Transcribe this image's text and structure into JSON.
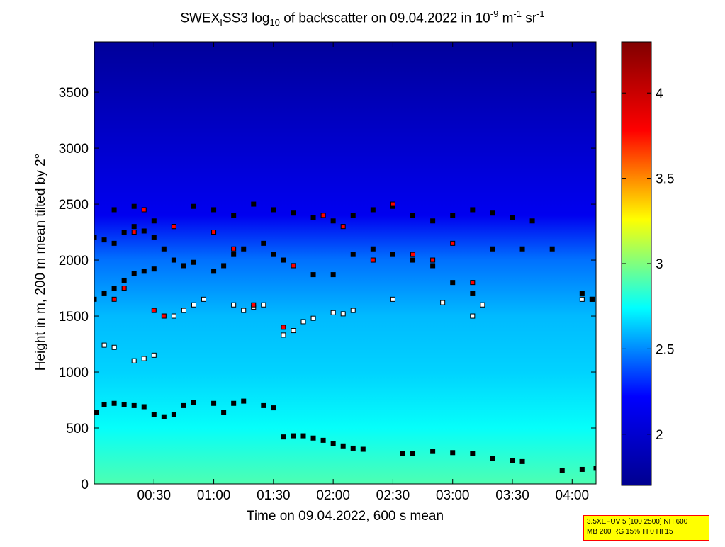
{
  "chart_data": {
    "type": "heatmap",
    "title": "SWEX_I SS3 log10 of backscatter on 09.04.2022 in 10^-9 m^-1 sr^-1",
    "title_parts": {
      "a": "SWEX",
      "a_sub": "I",
      "b": "SS3 log",
      "b_sub": "10",
      "c": " of backscatter on 09.04.2022 in 10",
      "c_sup": "-9",
      "d": " m",
      "d_sup": "-1",
      "e": " sr",
      "e_sup": "-1"
    },
    "xlabel": "Time on 09.04.2022, 600 s mean",
    "ylabel": "Height in m, 200 m mean tilted by 2°",
    "x_range_minutes": [
      0,
      252
    ],
    "y_range_m": [
      0,
      3950
    ],
    "x_ticks": [
      {
        "minutes": 30,
        "label": "00:30"
      },
      {
        "minutes": 60,
        "label": "01:00"
      },
      {
        "minutes": 90,
        "label": "01:30"
      },
      {
        "minutes": 120,
        "label": "02:00"
      },
      {
        "minutes": 150,
        "label": "02:30"
      },
      {
        "minutes": 180,
        "label": "03:00"
      },
      {
        "minutes": 210,
        "label": "03:30"
      },
      {
        "minutes": 240,
        "label": "04:00"
      }
    ],
    "y_ticks": [
      {
        "value": 0,
        "label": "0"
      },
      {
        "value": 500,
        "label": "500"
      },
      {
        "value": 1000,
        "label": "1000"
      },
      {
        "value": 1500,
        "label": "1500"
      },
      {
        "value": 2000,
        "label": "2000"
      },
      {
        "value": 2500,
        "label": "2500"
      },
      {
        "value": 3000,
        "label": "3000"
      },
      {
        "value": 3500,
        "label": "3500"
      }
    ],
    "colorbar": {
      "range": [
        1.7,
        4.3
      ],
      "ticks": [
        {
          "value": 2,
          "label": "2"
        },
        {
          "value": 2.5,
          "label": "2.5"
        },
        {
          "value": 3,
          "label": "3"
        },
        {
          "value": 3.5,
          "label": "3.5"
        },
        {
          "value": 4,
          "label": "4"
        }
      ],
      "colormap": "jet",
      "colors": [
        "#00008f",
        "#0000ff",
        "#00ffff",
        "#ffff00",
        "#ff0000",
        "#800000"
      ]
    },
    "field_levels": {
      "top_region_3950m": 1.75,
      "cloud_layer_2400m": 2.15,
      "layer_2000m": 2.45,
      "layer_1500m": 2.6,
      "layer_1000m": 2.65,
      "layer_500m": 2.75,
      "surface_0m": 2.9
    },
    "series": [
      {
        "name": "marker_layer_near_surface",
        "points": [
          [
            1,
            640
          ],
          [
            5,
            710
          ],
          [
            10,
            720
          ],
          [
            15,
            710
          ],
          [
            20,
            700
          ],
          [
            25,
            690
          ],
          [
            30,
            620
          ],
          [
            35,
            600
          ],
          [
            40,
            620
          ],
          [
            45,
            700
          ],
          [
            50,
            730
          ],
          [
            60,
            720
          ],
          [
            65,
            640
          ],
          [
            70,
            720
          ],
          [
            75,
            740
          ],
          [
            85,
            700
          ],
          [
            90,
            680
          ],
          [
            95,
            420
          ],
          [
            100,
            430
          ],
          [
            105,
            430
          ],
          [
            110,
            410
          ],
          [
            115,
            390
          ],
          [
            120,
            360
          ],
          [
            125,
            340
          ],
          [
            130,
            320
          ],
          [
            135,
            310
          ],
          [
            155,
            270
          ],
          [
            160,
            270
          ],
          [
            170,
            290
          ],
          [
            180,
            280
          ],
          [
            190,
            270
          ],
          [
            200,
            230
          ],
          [
            210,
            210
          ],
          [
            215,
            200
          ],
          [
            235,
            120
          ],
          [
            245,
            130
          ],
          [
            252,
            140
          ]
        ]
      },
      {
        "name": "marker_layer_mid",
        "points": [
          [
            5,
            1240
          ],
          [
            10,
            1220
          ],
          [
            20,
            1100
          ],
          [
            25,
            1120
          ],
          [
            30,
            1150
          ],
          [
            40,
            1500
          ],
          [
            45,
            1550
          ],
          [
            50,
            1600
          ],
          [
            55,
            1650
          ],
          [
            70,
            1600
          ],
          [
            75,
            1550
          ],
          [
            80,
            1580
          ],
          [
            85,
            1600
          ],
          [
            95,
            1330
          ],
          [
            100,
            1370
          ],
          [
            105,
            1450
          ],
          [
            110,
            1480
          ],
          [
            120,
            1530
          ],
          [
            125,
            1520
          ],
          [
            130,
            1550
          ],
          [
            150,
            1650
          ],
          [
            175,
            1620
          ],
          [
            190,
            1500
          ],
          [
            195,
            1600
          ],
          [
            245,
            1650
          ],
          [
            250,
            1650
          ]
        ]
      },
      {
        "name": "marker_layer_upper",
        "points": [
          [
            0,
            2200
          ],
          [
            5,
            2180
          ],
          [
            10,
            2150
          ],
          [
            15,
            2250
          ],
          [
            20,
            2300
          ],
          [
            25,
            2260
          ],
          [
            30,
            2200
          ],
          [
            35,
            2100
          ],
          [
            40,
            2000
          ],
          [
            45,
            1950
          ],
          [
            50,
            1980
          ],
          [
            60,
            1900
          ],
          [
            65,
            1950
          ],
          [
            70,
            2050
          ],
          [
            75,
            2100
          ],
          [
            85,
            2150
          ],
          [
            90,
            2050
          ],
          [
            95,
            2000
          ],
          [
            100,
            1950
          ],
          [
            110,
            1870
          ],
          [
            120,
            1870
          ],
          [
            130,
            2050
          ],
          [
            140,
            2100
          ],
          [
            150,
            2050
          ],
          [
            160,
            2000
          ],
          [
            170,
            1950
          ],
          [
            180,
            1800
          ],
          [
            190,
            1700
          ],
          [
            200,
            2100
          ],
          [
            215,
            2100
          ],
          [
            230,
            2100
          ],
          [
            245,
            1700
          ],
          [
            250,
            1650
          ]
        ]
      },
      {
        "name": "marker_layer_top",
        "points": [
          [
            10,
            2450
          ],
          [
            20,
            2480
          ],
          [
            30,
            2350
          ],
          [
            40,
            2300
          ],
          [
            50,
            2480
          ],
          [
            60,
            2450
          ],
          [
            70,
            2400
          ],
          [
            80,
            2500
          ],
          [
            90,
            2450
          ],
          [
            100,
            2420
          ],
          [
            110,
            2380
          ],
          [
            120,
            2350
          ],
          [
            130,
            2400
          ],
          [
            140,
            2450
          ],
          [
            150,
            2480
          ],
          [
            160,
            2400
          ],
          [
            170,
            2350
          ],
          [
            180,
            2400
          ],
          [
            190,
            2450
          ],
          [
            200,
            2420
          ],
          [
            210,
            2380
          ],
          [
            220,
            2350
          ]
        ]
      },
      {
        "name": "marker_layer_base",
        "points": [
          [
            0,
            1650
          ],
          [
            5,
            1700
          ],
          [
            10,
            1750
          ],
          [
            15,
            1820
          ],
          [
            20,
            1880
          ],
          [
            25,
            1900
          ],
          [
            30,
            1920
          ]
        ]
      },
      {
        "name": "marker_red_highlight",
        "points": [
          [
            10,
            1650
          ],
          [
            15,
            1750
          ],
          [
            20,
            2250
          ],
          [
            25,
            2450
          ],
          [
            30,
            1550
          ],
          [
            35,
            1500
          ],
          [
            40,
            2300
          ],
          [
            60,
            2250
          ],
          [
            70,
            2100
          ],
          [
            80,
            1600
          ],
          [
            95,
            1400
          ],
          [
            100,
            1950
          ],
          [
            115,
            2400
          ],
          [
            125,
            2300
          ],
          [
            140,
            2000
          ],
          [
            150,
            2500
          ],
          [
            160,
            2050
          ],
          [
            170,
            2000
          ],
          [
            180,
            2150
          ],
          [
            190,
            1800
          ]
        ]
      }
    ]
  },
  "settings_box": {
    "line1": "3.5XEFUV 5 [100 2500] NH 600",
    "line2": "MB 200 RG 15% TI 0 HI 15"
  }
}
